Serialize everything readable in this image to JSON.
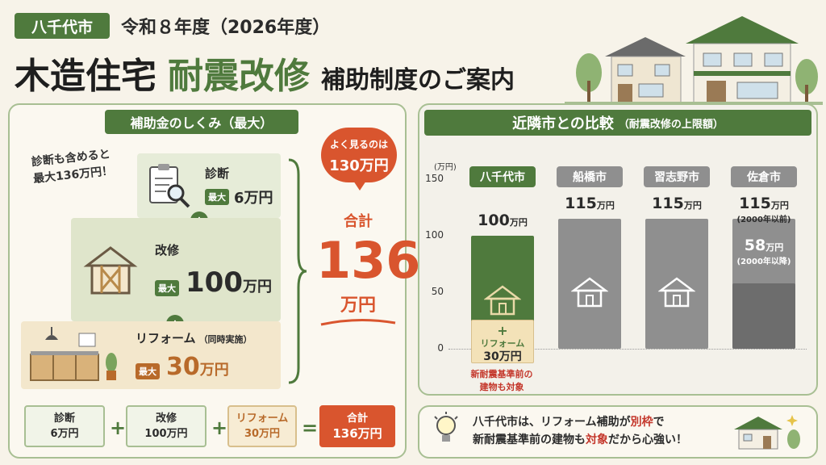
{
  "header": {
    "city_badge": "八千代市",
    "year": "令和８年度（2026年度）",
    "title_a": "木造住宅",
    "title_b": "耐震改修",
    "title_c": "補助制度のご案内"
  },
  "left_panel": {
    "heading": "補助金のしくみ（最大）",
    "note_line1": "診断も含めると",
    "note_line2": "最大136万円！",
    "diag": {
      "label": "診断",
      "max_tag": "最大",
      "amount": "6万円"
    },
    "reno": {
      "label": "改修",
      "max_tag": "最大",
      "amount_num": "100",
      "amount_unit": "万円"
    },
    "reform": {
      "label": "リフォーム",
      "label_sub": "（同時実施）",
      "max_tag": "最大",
      "amount_num": "30",
      "amount_unit": "万円"
    },
    "bubble_line1": "よく見るのは",
    "bubble_line2": "130万円",
    "total_label": "合計",
    "total_num": "136",
    "total_unit": "万円",
    "summary": [
      {
        "label": "診断",
        "value": "6万円"
      },
      {
        "label": "改修",
        "value": "100万円"
      },
      {
        "label": "リフォーム",
        "value": "30万円"
      },
      {
        "label": "合計",
        "value": "136万円"
      }
    ],
    "op_plus": "+",
    "op_equals": "="
  },
  "right_panel": {
    "heading": "近隣市との比較",
    "heading_sub": "（耐震改修の上限額）",
    "red_note_line1": "新耐震基準前の",
    "red_note_line2": "建物も対象",
    "yachiyo_reform_label": "リフォーム",
    "yachiyo_reform_value": "30万円",
    "sakura_old_note": "(2000年以前)",
    "sakura_new_value": "58",
    "sakura_new_unit": "万円",
    "sakura_new_note": "(2000年以降)"
  },
  "chart_data": {
    "type": "bar",
    "ylabel": "(万円)",
    "ylim": [
      0,
      150
    ],
    "yticks": [
      0,
      50,
      100,
      150
    ],
    "categories": [
      "八千代市",
      "船橋市",
      "習志野市",
      "佐倉市"
    ],
    "series": [
      {
        "values": [
          100,
          115,
          115,
          115
        ]
      }
    ],
    "stacked_extra": {
      "category": "八千代市",
      "label": "リフォーム",
      "value": 30
    },
    "overlay": {
      "category": "佐倉市",
      "value": 58
    },
    "data_labels": [
      "100",
      "115",
      "115",
      "115"
    ],
    "data_label_unit": "万円",
    "colors": {
      "yachiyo": "#4f7a3d",
      "others": "#8f8f8f",
      "reform": "#f3e2b8",
      "sakura_new": "#6d6d6d"
    }
  },
  "tip": {
    "line1_a": "八千代市は、リフォーム補助が",
    "line1_b": "別枠",
    "line1_c": "で",
    "line2_a": "新耐震基準前の建物も",
    "line2_b": "対象",
    "line2_c": "だから心強い！"
  },
  "icons": [
    "clipboard-magnifier-icon",
    "house-frame-icon",
    "kitchen-icon",
    "house-icon",
    "lightbulb-icon",
    "houses-illustration"
  ]
}
